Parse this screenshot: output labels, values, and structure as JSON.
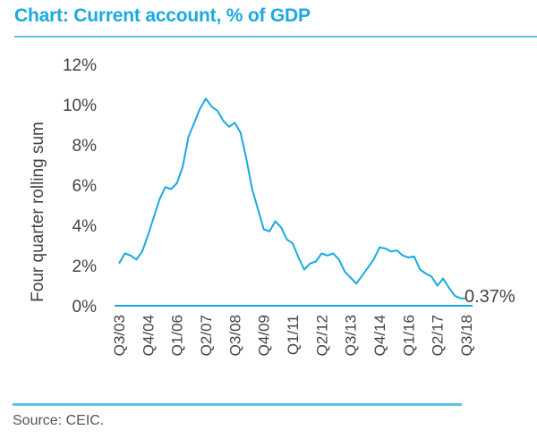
{
  "header": {
    "title": "Chart: Current account, % of GDP"
  },
  "footer": {
    "source": "Source: CEIC."
  },
  "chart_data": {
    "type": "line",
    "title": "Chart: Current account, % of GDP",
    "xlabel": "",
    "ylabel": "Four quarter rolling sum",
    "ylim": [
      0,
      12
    ],
    "yticks": [
      0,
      2,
      4,
      6,
      8,
      10,
      12
    ],
    "ytick_labels": [
      "0%",
      "2%",
      "4%",
      "6%",
      "8%",
      "10%",
      "12%"
    ],
    "xtick_labels": [
      "Q3/03",
      "Q4/04",
      "Q1/06",
      "Q2/07",
      "Q3/08",
      "Q4/09",
      "Q1/11",
      "Q2/12",
      "Q3/13",
      "Q4/14",
      "Q1/16",
      "Q2/17",
      "Q3/18"
    ],
    "xtick_indices": [
      0,
      5,
      10,
      15,
      20,
      25,
      30,
      35,
      40,
      45,
      50,
      55,
      60
    ],
    "grid": false,
    "legend": "none",
    "line_color": "#1aa9e0",
    "series": [
      {
        "name": "Current account, % of GDP",
        "x": [
          "Q3/03",
          "Q4/03",
          "Q1/04",
          "Q2/04",
          "Q3/04",
          "Q4/04",
          "Q1/05",
          "Q2/05",
          "Q3/05",
          "Q4/05",
          "Q1/06",
          "Q2/06",
          "Q3/06",
          "Q4/06",
          "Q1/07",
          "Q2/07",
          "Q3/07",
          "Q4/07",
          "Q1/08",
          "Q2/08",
          "Q3/08",
          "Q4/08",
          "Q1/09",
          "Q2/09",
          "Q3/09",
          "Q4/09",
          "Q1/10",
          "Q2/10",
          "Q3/10",
          "Q4/10",
          "Q1/11",
          "Q2/11",
          "Q3/11",
          "Q4/11",
          "Q1/12",
          "Q2/12",
          "Q3/12",
          "Q4/12",
          "Q1/13",
          "Q2/13",
          "Q3/13",
          "Q4/13",
          "Q1/14",
          "Q2/14",
          "Q3/14",
          "Q4/14",
          "Q1/15",
          "Q2/15",
          "Q3/15",
          "Q4/15",
          "Q1/16",
          "Q2/16",
          "Q3/16",
          "Q4/16",
          "Q1/17",
          "Q2/17",
          "Q3/17",
          "Q4/17",
          "Q1/18",
          "Q2/18",
          "Q3/18"
        ],
        "values": [
          2.1,
          2.6,
          2.5,
          2.3,
          2.7,
          3.5,
          4.4,
          5.3,
          5.9,
          5.8,
          6.1,
          6.9,
          8.4,
          9.1,
          9.8,
          10.3,
          9.9,
          9.7,
          9.2,
          8.9,
          9.1,
          8.6,
          7.3,
          5.8,
          4.8,
          3.8,
          3.7,
          4.2,
          3.9,
          3.3,
          3.1,
          2.4,
          1.8,
          2.1,
          2.2,
          2.6,
          2.5,
          2.6,
          2.3,
          1.7,
          1.4,
          1.1,
          1.5,
          1.9,
          2.3,
          2.9,
          2.85,
          2.7,
          2.75,
          2.5,
          2.4,
          2.45,
          1.8,
          1.6,
          1.45,
          1.0,
          1.35,
          0.9,
          0.5,
          0.37,
          0.37
        ]
      }
    ],
    "annotations": [
      {
        "text": "0.37%",
        "at": "Q3/18",
        "value": 0.37
      }
    ]
  }
}
